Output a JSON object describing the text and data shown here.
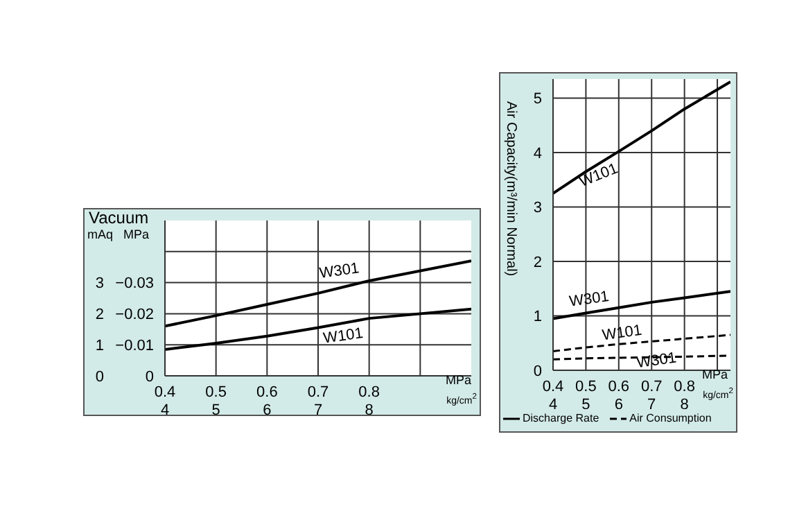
{
  "chart_data": [
    {
      "type": "line",
      "title": "Vacuum",
      "ylabel": "MPa",
      "y2label": "mAq",
      "xlabel": "MPa",
      "x2label": "kg/cm$^{2}$",
      "xlim": [
        0.4,
        1.0
      ],
      "xticks": [
        0.4,
        0.5,
        0.6,
        0.7,
        0.8,
        {
          "value": 0.9,
          "label": null
        }
      ],
      "x2lim": [
        4,
        10
      ],
      "x2ticks": [
        4,
        5,
        6,
        7,
        8
      ],
      "ylim": [
        0,
        -0.05
      ],
      "yticks": [
        0,
        -0.01,
        -0.02,
        -0.03,
        {
          "value": -0.04,
          "label": null
        }
      ],
      "y2lim": [
        0,
        5
      ],
      "y2ticks": [
        0,
        1,
        2,
        3
      ],
      "grid": true,
      "marker": "none",
      "series": [
        {
          "name": "W301",
          "color": "#000000",
          "line_style": "solid",
          "x": [
            0.4,
            0.5,
            0.6,
            0.7,
            0.8,
            1.0
          ],
          "values": [
            -0.016,
            -0.0194,
            -0.023,
            -0.0266,
            -0.0306,
            -0.037
          ]
        },
        {
          "name": "W101",
          "color": "#000000",
          "line_style": "solid",
          "x": [
            0.4,
            0.5,
            0.6,
            0.7,
            0.8,
            1.0
          ],
          "values": [
            -0.0085,
            -0.0105,
            -0.0128,
            -0.0155,
            -0.0185,
            -0.0215
          ]
        }
      ]
    },
    {
      "type": "line",
      "ylabel": "Air Capacity(m³/min Normal)",
      "xlabel": "MPa",
      "x2label": "kg/cm$^{2}$",
      "xlim": [
        0.4,
        0.94
      ],
      "xticks": [
        0.4,
        0.5,
        0.6,
        0.7,
        0.8,
        {
          "value": 0.9,
          "label": null
        }
      ],
      "x2lim": [
        4,
        9.4
      ],
      "x2ticks": [
        4,
        5,
        6,
        7,
        8
      ],
      "ylim": [
        0,
        5.35
      ],
      "yticks": [
        0,
        1,
        2,
        3,
        4,
        5
      ],
      "grid": true,
      "marker": "none",
      "annotations": [
        "Discharge Rate",
        "Air Consumption"
      ],
      "series": [
        {
          "name": "W101",
          "color": "#000000",
          "line_style": "solid",
          "x": [
            0.4,
            0.5,
            0.6,
            0.7,
            0.8,
            0.94
          ],
          "values": [
            3.25,
            3.65,
            4.02,
            4.4,
            4.8,
            5.3
          ]
        },
        {
          "name": "W301",
          "color": "#000000",
          "line_style": "solid",
          "x": [
            0.4,
            0.5,
            0.6,
            0.7,
            0.8,
            0.94
          ],
          "values": [
            0.95,
            1.05,
            1.15,
            1.25,
            1.33,
            1.45
          ]
        },
        {
          "name": "W101",
          "color": "#000000",
          "line_style": "dashed",
          "x": [
            0.4,
            0.5,
            0.6,
            0.7,
            0.8,
            0.94
          ],
          "values": [
            0.35,
            0.42,
            0.48,
            0.53,
            0.58,
            0.65
          ]
        },
        {
          "name": "W301",
          "color": "#000000",
          "line_style": "dashed",
          "x": [
            0.4,
            0.5,
            0.6,
            0.7,
            0.8,
            0.94
          ],
          "values": [
            0.2,
            0.22,
            0.23,
            0.24,
            0.25,
            0.27
          ]
        }
      ]
    }
  ]
}
